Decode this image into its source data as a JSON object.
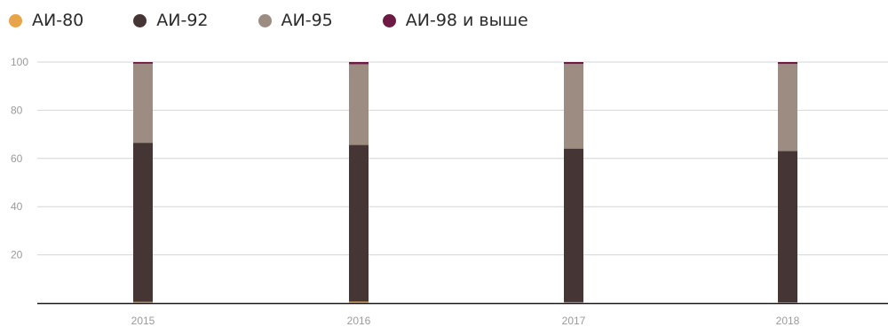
{
  "chart_data": {
    "type": "bar",
    "stacked": true,
    "categories": [
      "2015",
      "2016",
      "2017",
      "2018"
    ],
    "series": [
      {
        "name": "АИ-80",
        "color": "#e8a44a",
        "values": [
          0.5,
          0.6,
          0.4,
          0.3
        ]
      },
      {
        "name": "АИ-92",
        "color": "#463535",
        "values": [
          66,
          65,
          63.7,
          62.8
        ]
      },
      {
        "name": "АИ-95",
        "color": "#9c8c82",
        "values": [
          32.8,
          33.5,
          35.1,
          36.1
        ]
      },
      {
        "name": "АИ-98 и выше",
        "color": "#6e1a45",
        "values": [
          0.7,
          0.9,
          0.8,
          0.8
        ]
      }
    ],
    "y_ticks": [
      "100",
      "80",
      "60",
      "40",
      "20"
    ],
    "y_tick_values": [
      100,
      80,
      60,
      40,
      20
    ],
    "ylim": [
      0,
      100
    ],
    "grid": true,
    "legend_position": "top-left",
    "title": "",
    "xlabel": "",
    "ylabel": ""
  }
}
